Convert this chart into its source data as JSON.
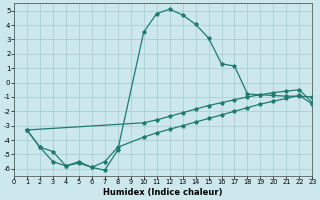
{
  "xlabel": "Humidex (Indice chaleur)",
  "bg_color": "#cce8ec",
  "line_color": "#1f7a72",
  "grid_color": "#aacfd4",
  "xlim": [
    0,
    23
  ],
  "ylim": [
    -6.5,
    5.5
  ],
  "xticks": [
    0,
    1,
    2,
    3,
    4,
    5,
    6,
    7,
    8,
    9,
    10,
    11,
    12,
    13,
    14,
    15,
    16,
    17,
    18,
    19,
    20,
    21,
    22,
    23
  ],
  "yticks": [
    -6,
    -5,
    -4,
    -3,
    -2,
    -1,
    0,
    1,
    2,
    3,
    4,
    5
  ],
  "curve_main_x": [
    1,
    2,
    3,
    4,
    5,
    6,
    7,
    8,
    10,
    11,
    12,
    13,
    14,
    15,
    16,
    17,
    18,
    19,
    20,
    21,
    22,
    23
  ],
  "curve_main_y": [
    -3.3,
    -4.5,
    -4.8,
    -5.8,
    -5.6,
    -5.9,
    -6.1,
    -4.7,
    3.5,
    4.8,
    5.1,
    4.7,
    4.05,
    3.1,
    1.3,
    1.15,
    -0.8,
    -0.85,
    -0.9,
    -0.95,
    -0.95,
    -1.0
  ],
  "curve_diag_x": [
    1,
    10,
    11,
    12,
    13,
    14,
    15,
    16,
    17,
    18,
    19,
    20,
    21,
    22,
    23
  ],
  "curve_diag_y": [
    -3.3,
    -2.8,
    -2.6,
    -2.35,
    -2.1,
    -1.85,
    -1.6,
    -1.4,
    -1.2,
    -1.0,
    -0.85,
    -0.7,
    -0.6,
    -0.5,
    -1.4
  ],
  "curve_bot_x": [
    1,
    2,
    3,
    4,
    5,
    6,
    7,
    8,
    10,
    11,
    12,
    13,
    14,
    15,
    16,
    17,
    18,
    19,
    20,
    21,
    22,
    23
  ],
  "curve_bot_y": [
    -3.3,
    -4.5,
    -5.5,
    -5.8,
    -5.5,
    -5.9,
    -5.5,
    -4.5,
    -3.8,
    -3.5,
    -3.25,
    -3.0,
    -2.75,
    -2.5,
    -2.25,
    -2.0,
    -1.75,
    -1.5,
    -1.3,
    -1.1,
    -0.9,
    -1.5
  ]
}
